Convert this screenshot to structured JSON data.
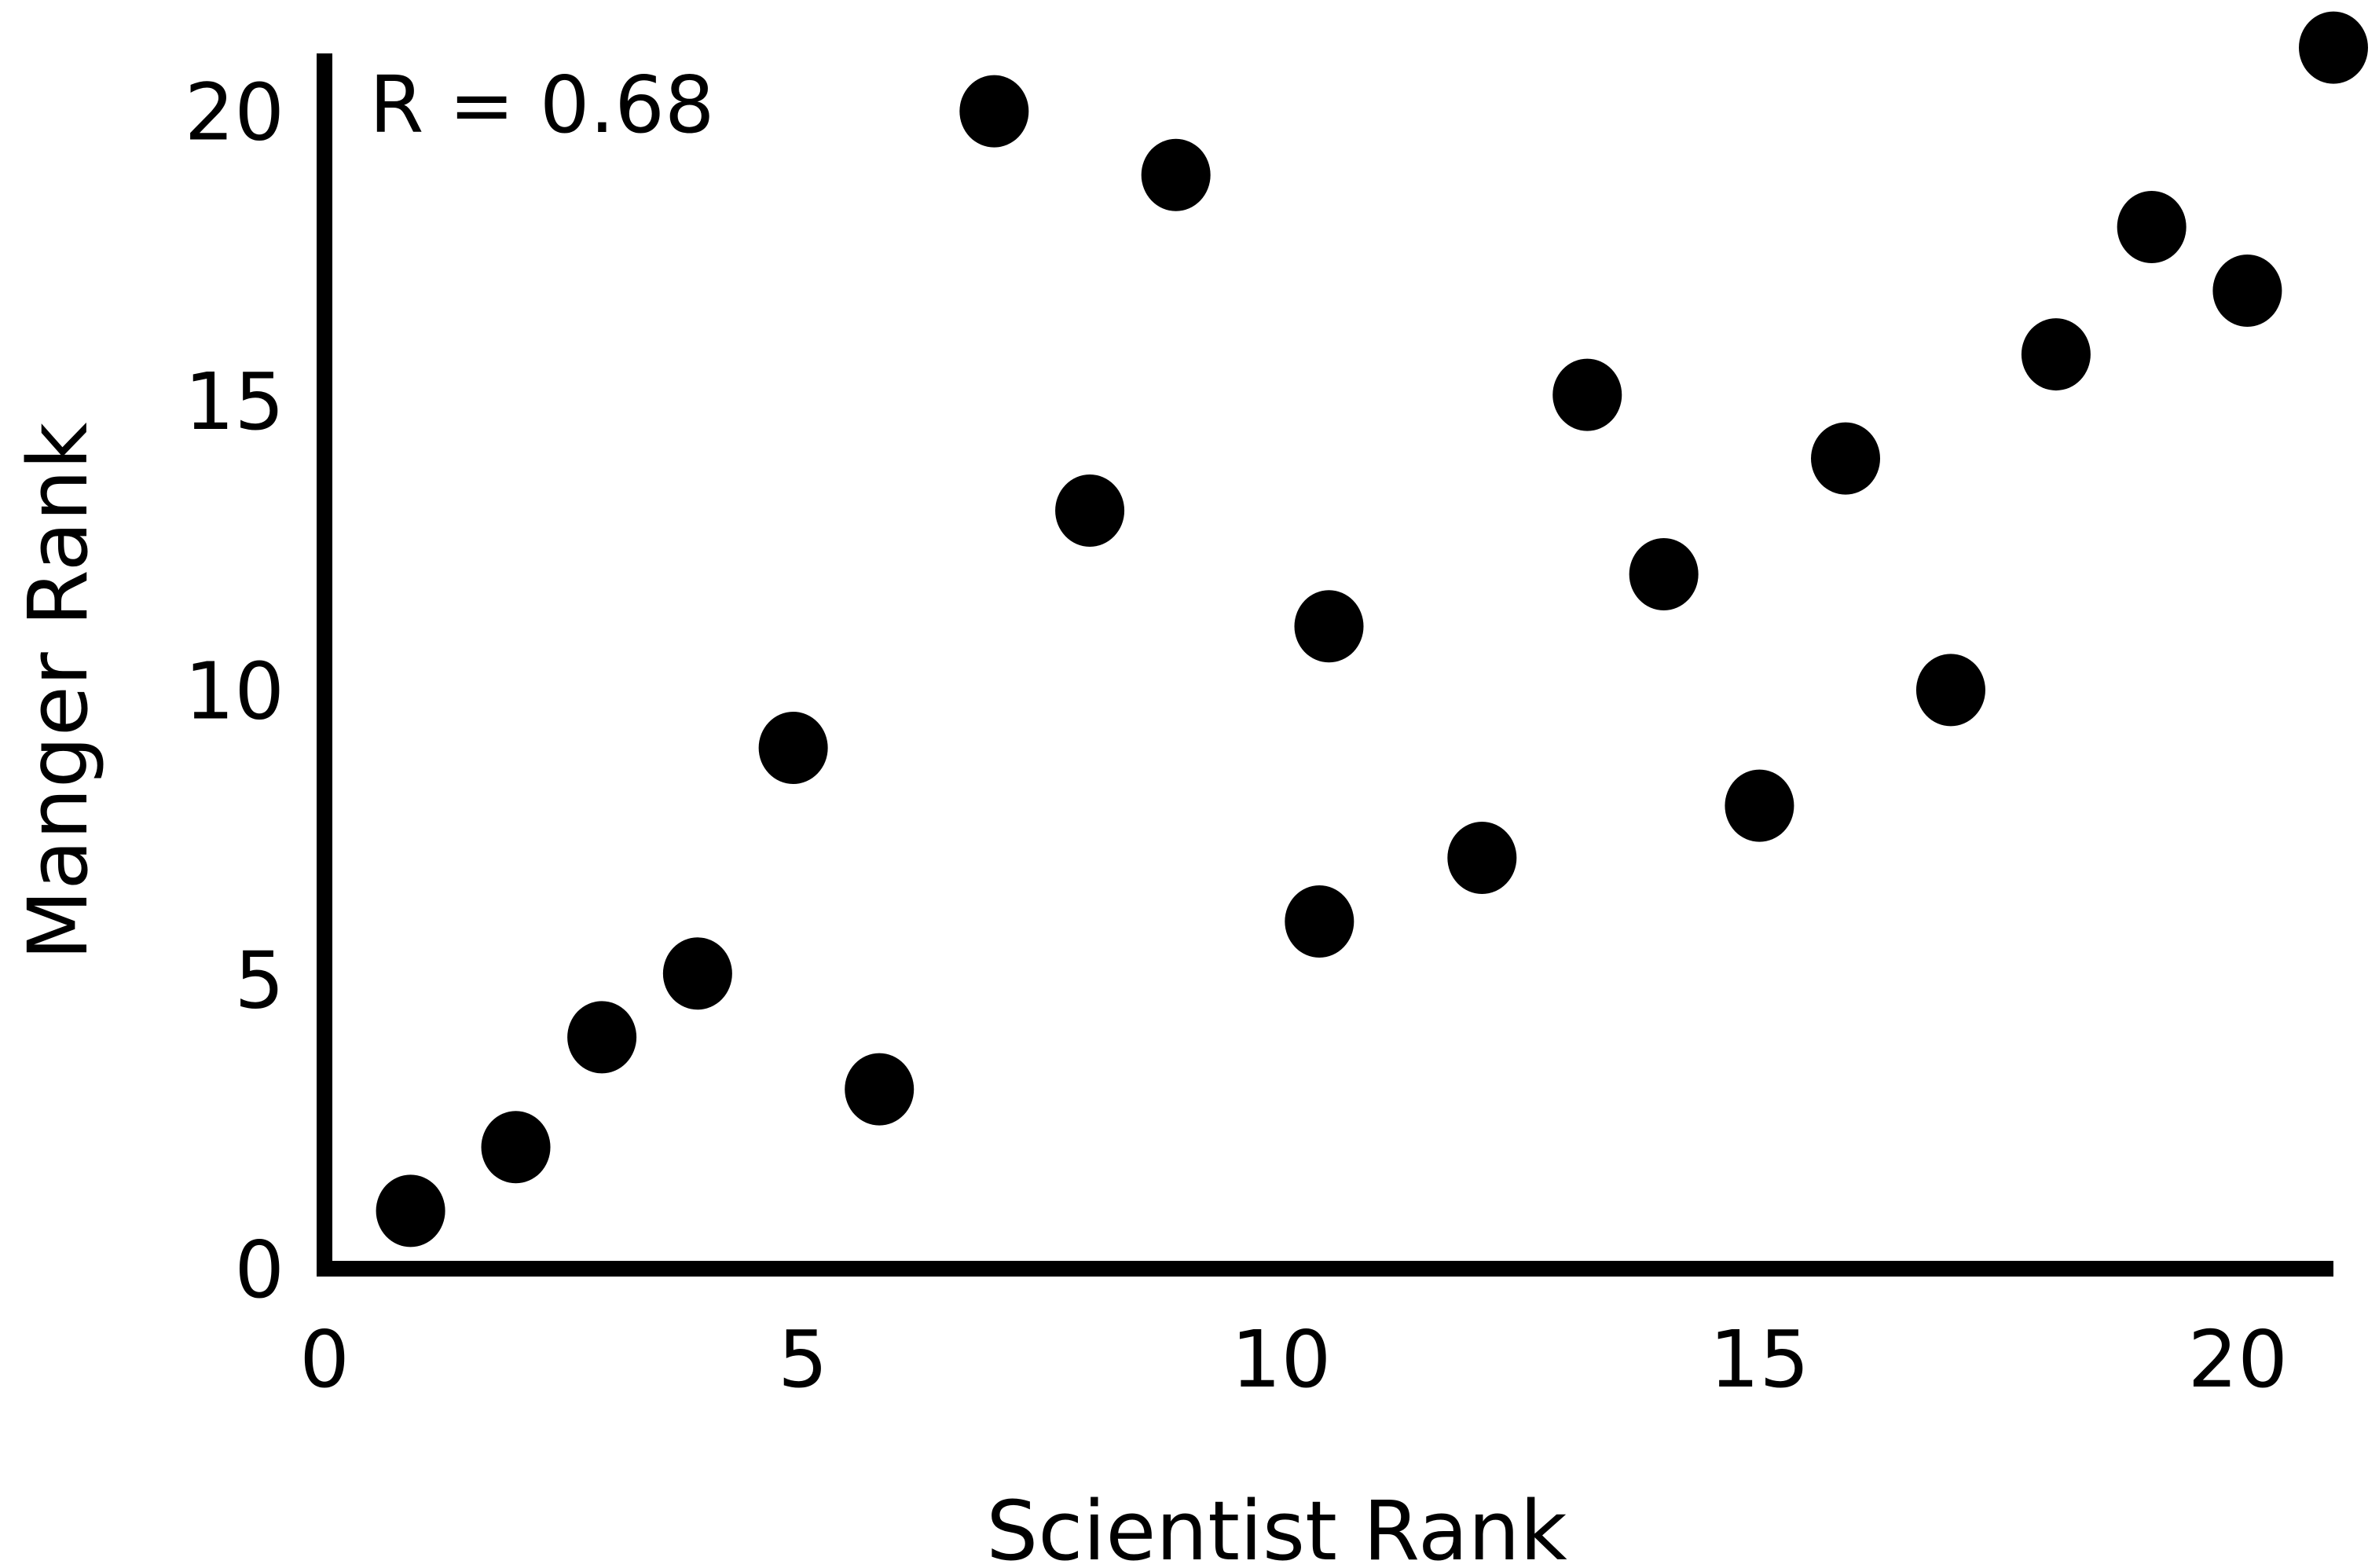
{
  "chart_data": {
    "type": "scatter",
    "title": "",
    "xlabel": "Scientist Rank",
    "ylabel": "Manger Rank",
    "xlim": [
      0,
      21
    ],
    "ylim": [
      0,
      21
    ],
    "x_ticks": [
      0,
      5,
      10,
      15,
      20
    ],
    "y_ticks": [
      0,
      5,
      10,
      15,
      20
    ],
    "grid": false,
    "legend": "none",
    "annotation": "R = 0.68",
    "marker_color": "#000000",
    "series": [
      {
        "points": [
          {
            "x": 0.9,
            "y": 1.0
          },
          {
            "x": 2.0,
            "y": 2.1
          },
          {
            "x": 2.9,
            "y": 4.0
          },
          {
            "x": 3.9,
            "y": 5.1
          },
          {
            "x": 4.9,
            "y": 9.0
          },
          {
            "x": 5.8,
            "y": 3.1
          },
          {
            "x": 7.0,
            "y": 20.0
          },
          {
            "x": 8.0,
            "y": 13.1
          },
          {
            "x": 8.9,
            "y": 18.9
          },
          {
            "x": 10.4,
            "y": 6.0
          },
          {
            "x": 10.5,
            "y": 11.1
          },
          {
            "x": 12.1,
            "y": 7.1
          },
          {
            "x": 13.2,
            "y": 15.1
          },
          {
            "x": 14.0,
            "y": 12.0
          },
          {
            "x": 15.0,
            "y": 8.0
          },
          {
            "x": 15.9,
            "y": 14.0
          },
          {
            "x": 17.0,
            "y": 10.0
          },
          {
            "x": 18.1,
            "y": 15.8
          },
          {
            "x": 19.1,
            "y": 18.0
          },
          {
            "x": 20.1,
            "y": 16.9
          },
          {
            "x": 21.0,
            "y": 21.1
          }
        ]
      }
    ]
  }
}
